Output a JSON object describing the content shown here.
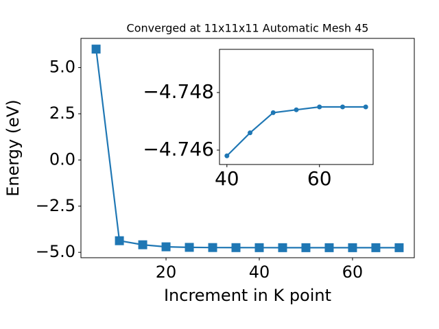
{
  "chart_data": [
    {
      "type": "line",
      "title": "Converged at 11x11x11 Automatic Mesh 45",
      "x_label": "Increment in K point",
      "y_label": "Energy (eV)",
      "x": [
        5,
        10,
        15,
        20,
        25,
        30,
        35,
        40,
        45,
        50,
        55,
        60,
        65,
        70
      ],
      "series": [
        {
          "color": "#1f77b4",
          "marker": "square",
          "values": [
            6.0,
            -4.37,
            -4.59,
            -4.7,
            -4.73,
            -4.74,
            -4.744,
            -4.7458,
            -4.7466,
            -4.7473,
            -4.7474,
            -4.7475,
            -4.7475,
            -4.7475
          ]
        }
      ],
      "xlim": [
        1.75,
        73.25
      ],
      "ylim": [
        -5.29,
        6.58
      ],
      "xticks": [
        20,
        40,
        60
      ],
      "yticks": [
        {
          "value": 5,
          "label": "5.0"
        },
        {
          "value": 2.5,
          "label": "2.5"
        },
        {
          "value": 0,
          "label": "0.0"
        },
        {
          "value": -2.5,
          "label": "−2.5"
        },
        {
          "value": -5,
          "label": "−5.0"
        }
      ]
    },
    {
      "type": "line",
      "x": [
        40,
        45,
        50,
        55,
        60,
        65,
        70
      ],
      "series": [
        {
          "color": "#1f77b4",
          "marker": "circle",
          "values": [
            -4.7458,
            -4.7466,
            -4.7473,
            -4.7474,
            -4.7475,
            -4.7475,
            -4.7475
          ]
        }
      ],
      "xlim": [
        38.4,
        71.6
      ],
      "ylim": [
        -4.7455,
        -4.7495
      ],
      "xticks": [
        40,
        60
      ],
      "yticks": [
        {
          "value": -4.748,
          "label": "−4.748"
        },
        {
          "value": -4.746,
          "label": "−4.746"
        }
      ]
    }
  ]
}
